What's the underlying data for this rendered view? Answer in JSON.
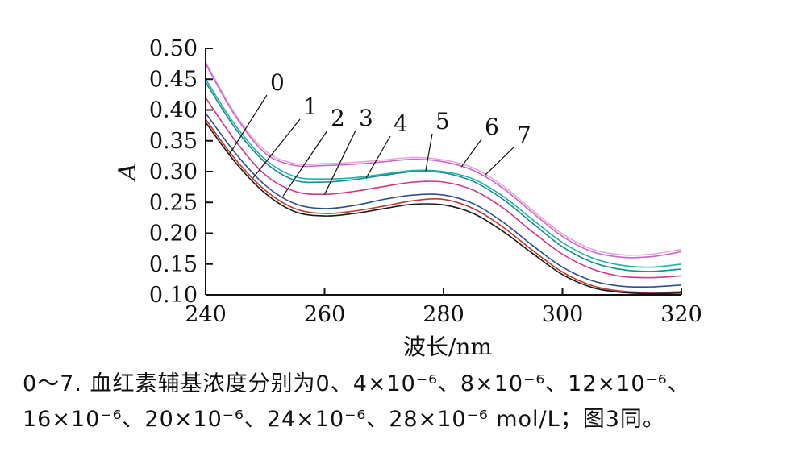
{
  "chart_data": {
    "type": "line",
    "xlabel": "波长/nm",
    "ylabel": "A",
    "xlim": [
      240,
      320
    ],
    "ylim": [
      0.1,
      0.5
    ],
    "x_ticks": [
      "240",
      "260",
      "280",
      "300",
      "320"
    ],
    "y_ticks": [
      "0.10",
      "0.15",
      "0.20",
      "0.25",
      "0.30",
      "0.35",
      "0.40",
      "0.45",
      "0.50"
    ],
    "x": [
      240,
      245,
      250,
      255,
      260,
      265,
      270,
      275,
      280,
      285,
      290,
      295,
      300,
      305,
      310,
      315,
      320
    ],
    "series": [
      {
        "name": "0",
        "color": "#1a1a1a",
        "values": [
          0.38,
          0.315,
          0.265,
          0.235,
          0.228,
          0.232,
          0.24,
          0.247,
          0.246,
          0.232,
          0.203,
          0.167,
          0.133,
          0.112,
          0.104,
          0.102,
          0.103
        ]
      },
      {
        "name": "1",
        "color": "#c0392b",
        "values": [
          0.385,
          0.32,
          0.27,
          0.24,
          0.232,
          0.236,
          0.244,
          0.253,
          0.255,
          0.24,
          0.21,
          0.172,
          0.137,
          0.115,
          0.106,
          0.104,
          0.105
        ]
      },
      {
        "name": "2",
        "color": "#2c4f8a",
        "values": [
          0.395,
          0.33,
          0.278,
          0.248,
          0.24,
          0.245,
          0.255,
          0.262,
          0.262,
          0.248,
          0.218,
          0.18,
          0.145,
          0.123,
          0.114,
          0.113,
          0.116
        ]
      },
      {
        "name": "3",
        "color": "#d63384",
        "values": [
          0.42,
          0.35,
          0.295,
          0.268,
          0.263,
          0.268,
          0.276,
          0.283,
          0.283,
          0.27,
          0.241,
          0.202,
          0.166,
          0.142,
          0.13,
          0.128,
          0.131
        ]
      },
      {
        "name": "4",
        "color": "#1a8a8a",
        "values": [
          0.445,
          0.37,
          0.315,
          0.286,
          0.283,
          0.287,
          0.294,
          0.3,
          0.298,
          0.284,
          0.255,
          0.216,
          0.178,
          0.153,
          0.141,
          0.138,
          0.142
        ]
      },
      {
        "name": "5",
        "color": "#20b2aa",
        "values": [
          0.45,
          0.375,
          0.32,
          0.292,
          0.288,
          0.29,
          0.296,
          0.302,
          0.3,
          0.288,
          0.26,
          0.222,
          0.185,
          0.16,
          0.148,
          0.145,
          0.15
        ]
      },
      {
        "name": "6",
        "color": "#cc66cc",
        "values": [
          0.475,
          0.39,
          0.33,
          0.31,
          0.31,
          0.312,
          0.316,
          0.32,
          0.316,
          0.302,
          0.273,
          0.233,
          0.195,
          0.17,
          0.161,
          0.162,
          0.17
        ]
      },
      {
        "name": "7",
        "color": "#e6a8d0",
        "values": [
          0.478,
          0.393,
          0.334,
          0.313,
          0.313,
          0.315,
          0.319,
          0.323,
          0.319,
          0.306,
          0.277,
          0.237,
          0.199,
          0.174,
          0.165,
          0.166,
          0.174
        ]
      }
    ],
    "annotations": [
      {
        "text": "0",
        "series": 0,
        "at_x": 244
      },
      {
        "text": "1",
        "series": 1,
        "at_x": 248
      },
      {
        "text": "2",
        "series": 2,
        "at_x": 253
      },
      {
        "text": "3",
        "series": 3,
        "at_x": 260
      },
      {
        "text": "4",
        "series": 4,
        "at_x": 267
      },
      {
        "text": "5",
        "series": 5,
        "at_x": 277
      },
      {
        "text": "6",
        "series": 6,
        "at_x": 283
      },
      {
        "text": "7",
        "series": 7,
        "at_x": 287
      }
    ]
  },
  "caption": {
    "line1": "0～7. 血红素辅基浓度分别为0、4×10⁻⁶、8×10⁻⁶、12×10⁻⁶、",
    "line2": "16×10⁻⁶、20×10⁻⁶、24×10⁻⁶、28×10⁻⁶ mol/L；图3同。"
  }
}
